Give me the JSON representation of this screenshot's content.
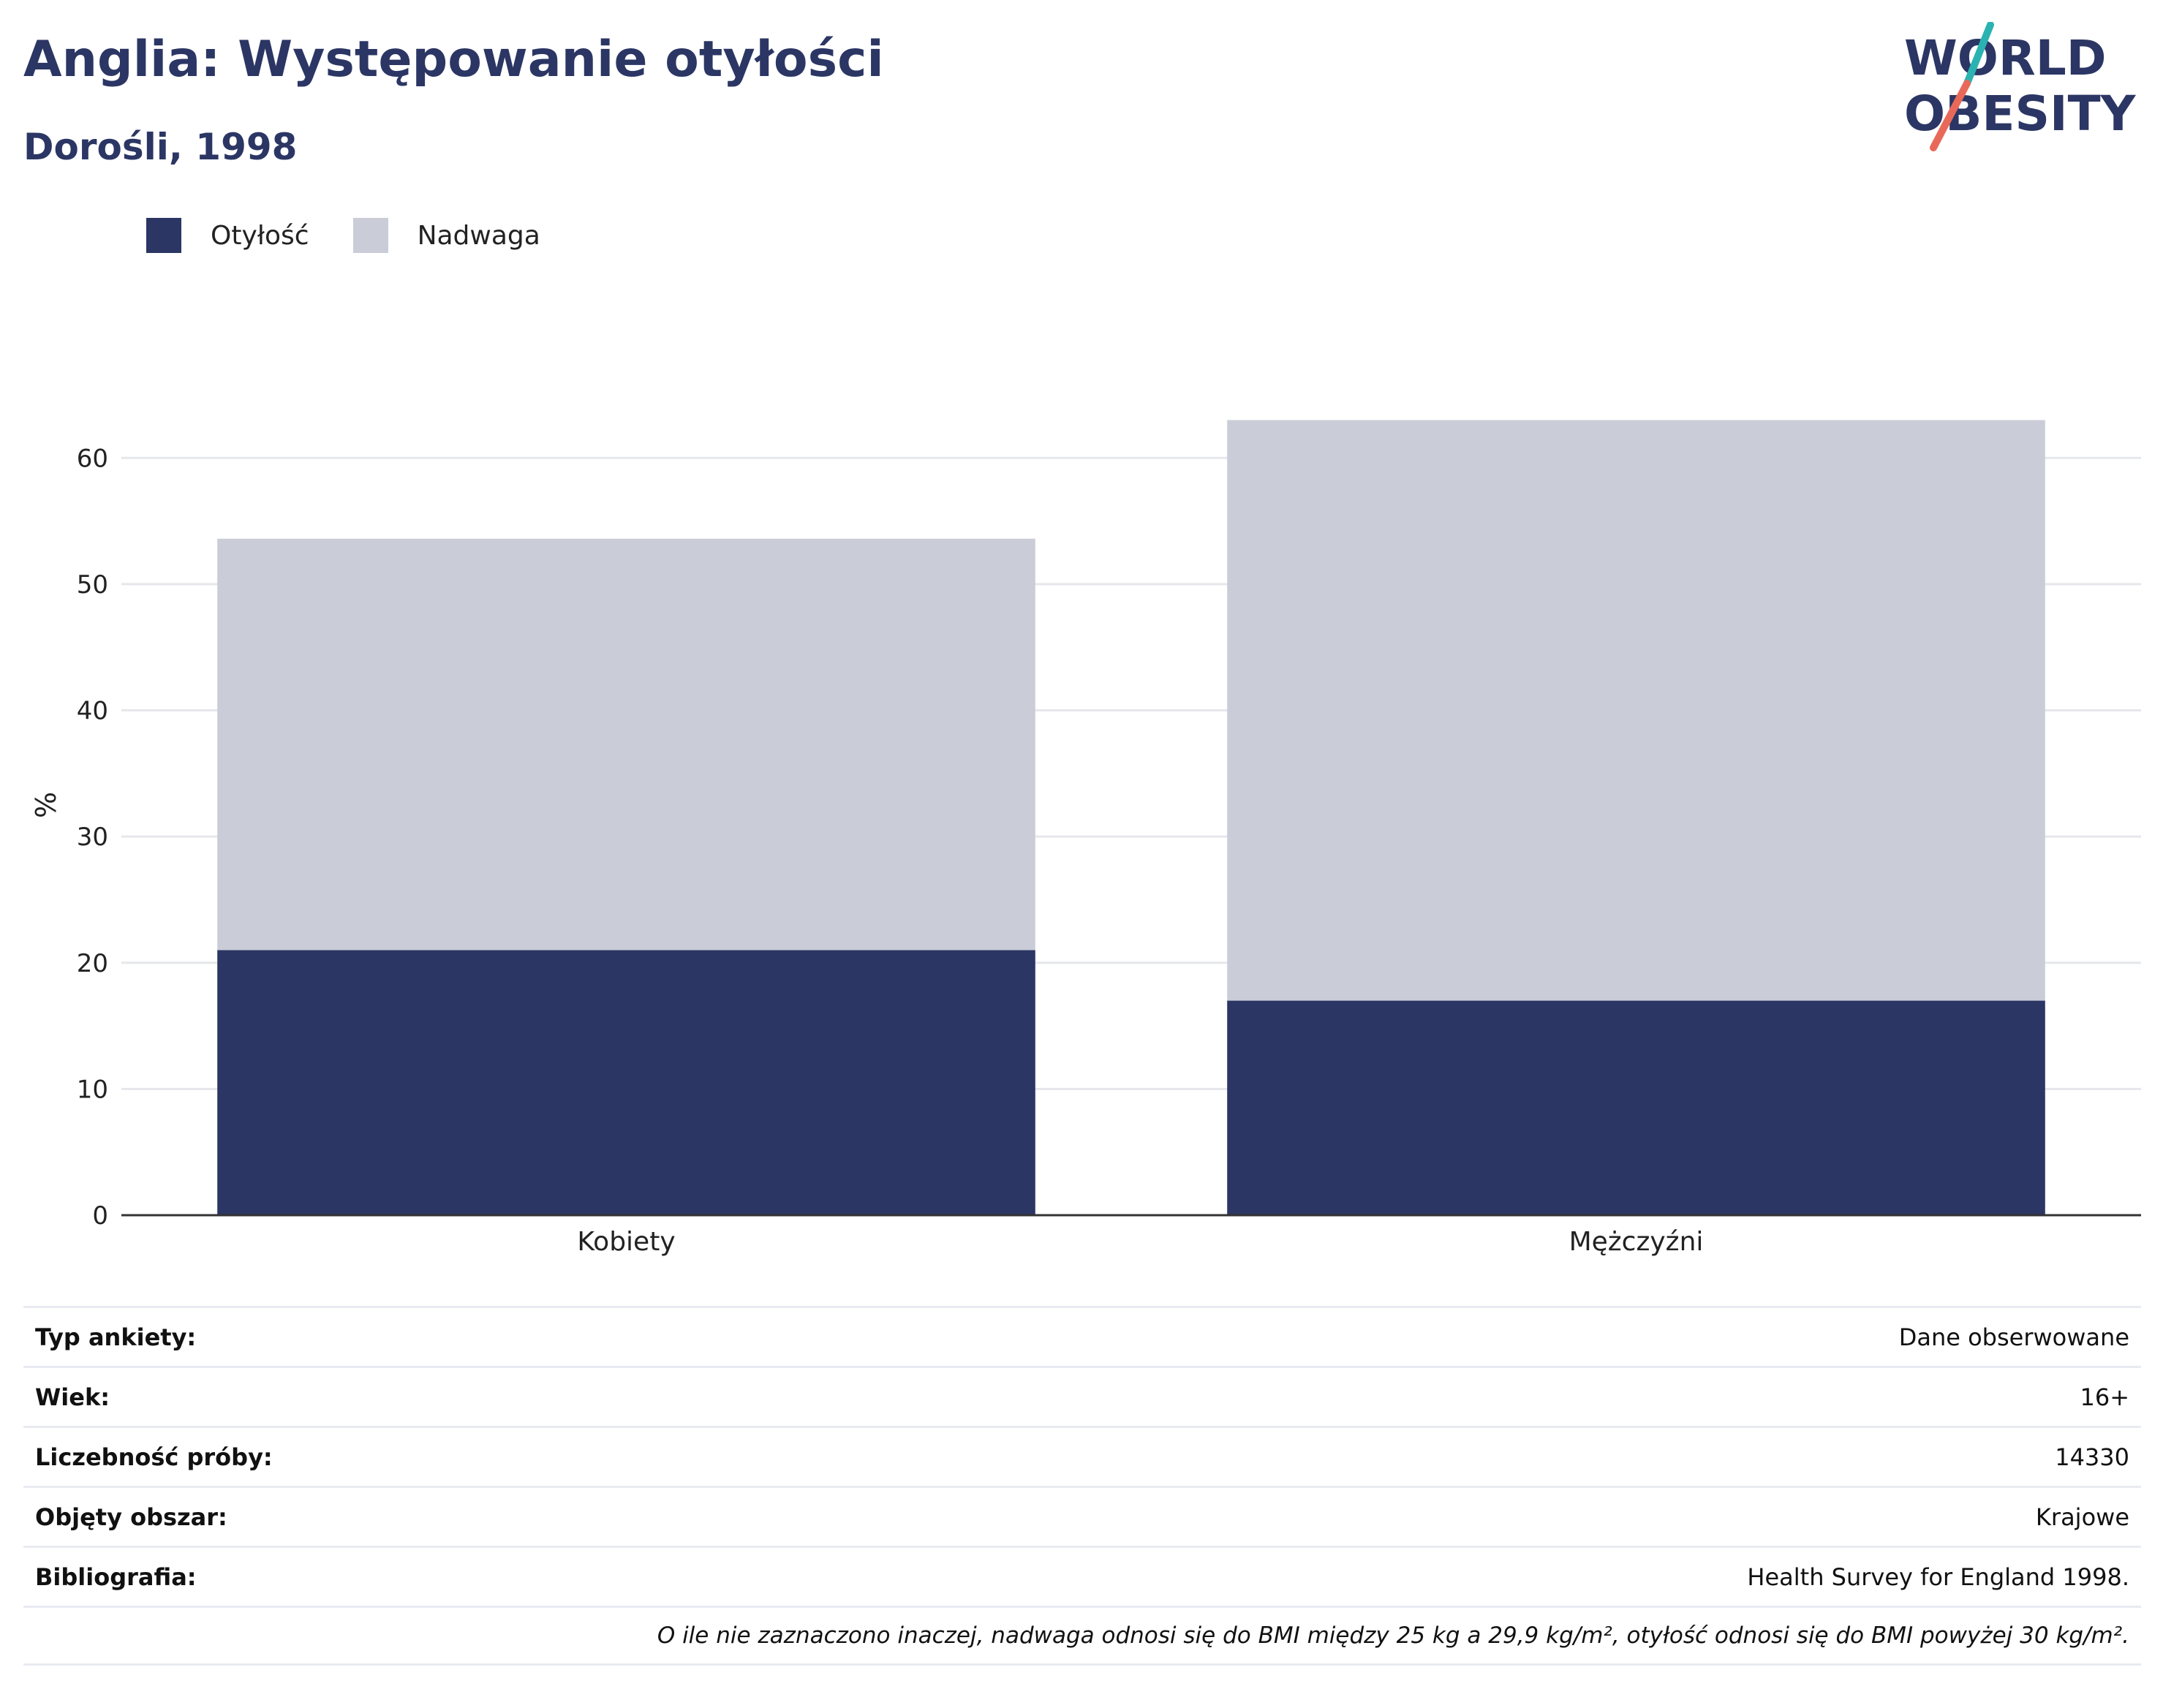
{
  "header": {
    "title": "Anglia: Występowanie otyłości",
    "subtitle": "Dorośli, 1998"
  },
  "logo": {
    "line1": "WORLD",
    "line2": "OBESITY",
    "color_text": "#2b3664",
    "color_slash_top": "#2bb3b1",
    "color_slash_bottom": "#e8695a"
  },
  "colors": {
    "obesity": "#2b3664",
    "overweight": "#cacdd8",
    "grid": "#e6e7ec",
    "axis": "#333333"
  },
  "chart_data": {
    "type": "bar",
    "stacked": true,
    "categories": [
      "Kobiety",
      "Mężczyźni"
    ],
    "series": [
      {
        "name": "Otyłość",
        "values": [
          21,
          17
        ],
        "color": "#2b3664"
      },
      {
        "name": "Nadwaga",
        "values": [
          32.6,
          46
        ],
        "color": "#cacdd8"
      }
    ],
    "ylabel": "%",
    "xlabel": "",
    "ylim": [
      0,
      65
    ],
    "yticks": [
      0,
      10,
      20,
      30,
      40,
      50,
      60
    ],
    "grid": true,
    "legend_position": "top-left"
  },
  "info_table": [
    {
      "label": "Typ ankiety:",
      "value": "Dane obserwowane"
    },
    {
      "label": "Wiek:",
      "value": "16+"
    },
    {
      "label": "Liczebność próby:",
      "value": "14330"
    },
    {
      "label": "Objęty obszar:",
      "value": "Krajowe"
    },
    {
      "label": "Bibliografia:",
      "value": "Health Survey for England 1998."
    }
  ],
  "footnote": "O ile nie zaznaczono inaczej, nadwaga odnosi się do BMI między 25 kg a 29,9 kg/m², otyłość odnosi się do BMI powyżej 30 kg/m²."
}
